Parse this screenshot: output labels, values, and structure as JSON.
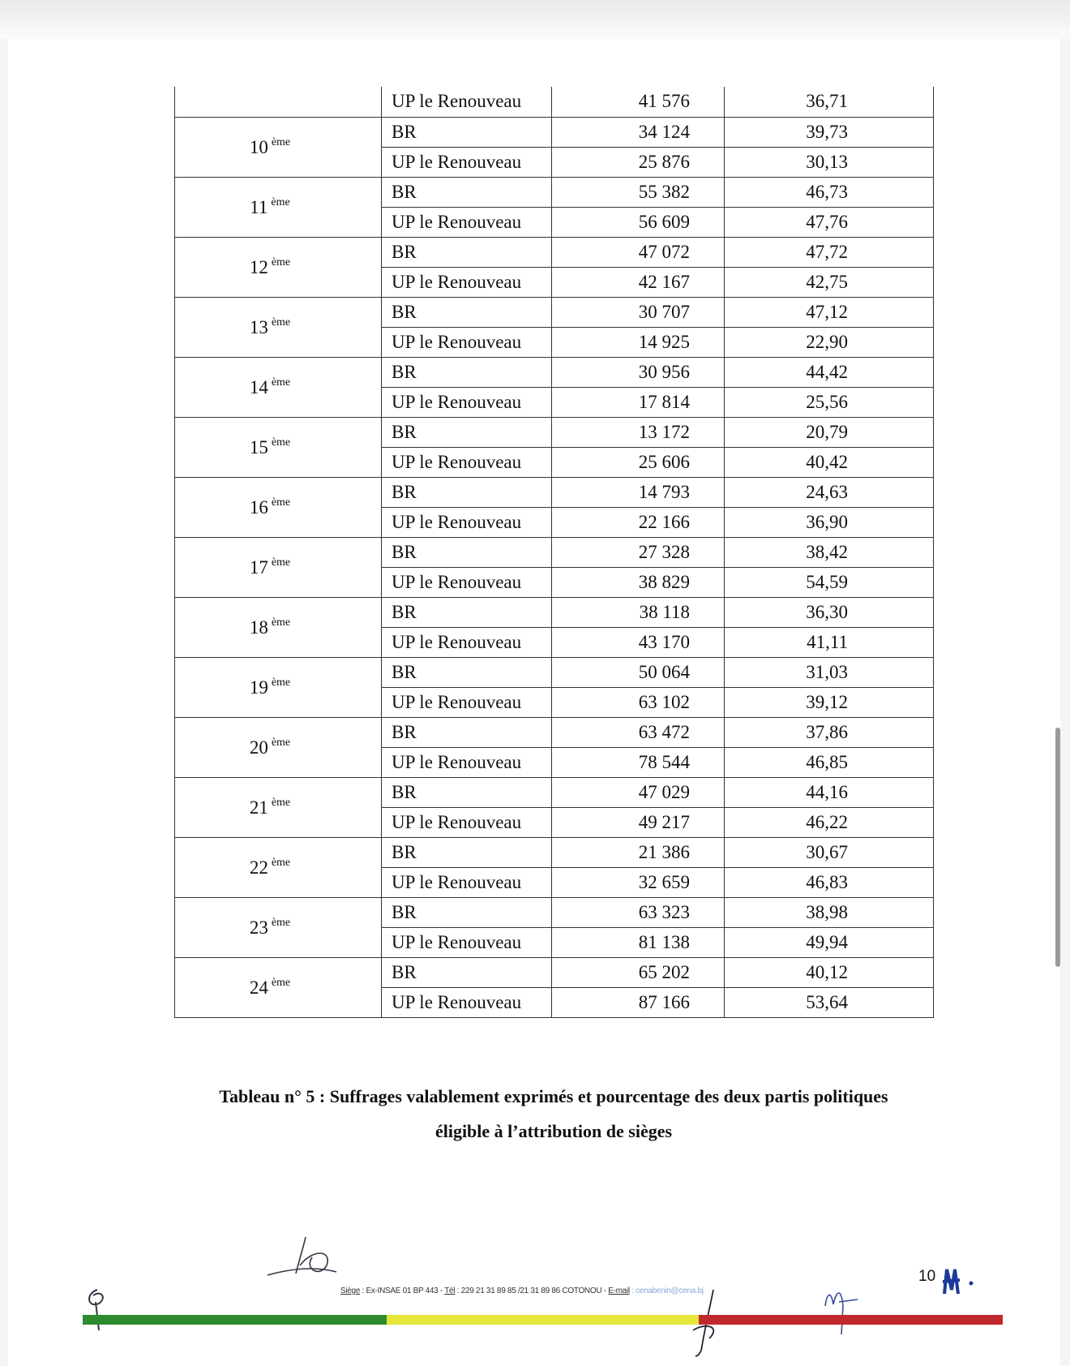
{
  "table": {
    "top_continuation": {
      "party": "UP le Renouveau",
      "votes": "41 576",
      "pct": "36,71"
    },
    "districts": [
      {
        "num": "10",
        "suffix": "ème",
        "rows": [
          {
            "party": "BR",
            "votes": "34 124",
            "pct": "39,73"
          },
          {
            "party": "UP le Renouveau",
            "votes": "25 876",
            "pct": "30,13"
          }
        ]
      },
      {
        "num": "11",
        "suffix": "ème",
        "rows": [
          {
            "party": "BR",
            "votes": "55 382",
            "pct": "46,73"
          },
          {
            "party": "UP le Renouveau",
            "votes": "56 609",
            "pct": "47,76"
          }
        ]
      },
      {
        "num": "12",
        "suffix": "ème",
        "rows": [
          {
            "party": "BR",
            "votes": "47 072",
            "pct": "47,72"
          },
          {
            "party": "UP le Renouveau",
            "votes": "42 167",
            "pct": "42,75"
          }
        ]
      },
      {
        "num": "13",
        "suffix": "ème",
        "rows": [
          {
            "party": "BR",
            "votes": "30 707",
            "pct": "47,12"
          },
          {
            "party": "UP le Renouveau",
            "votes": "14 925",
            "pct": "22,90"
          }
        ]
      },
      {
        "num": "14",
        "suffix": "ème",
        "rows": [
          {
            "party": "BR",
            "votes": "30 956",
            "pct": "44,42"
          },
          {
            "party": "UP le Renouveau",
            "votes": "17 814",
            "pct": "25,56"
          }
        ]
      },
      {
        "num": "15",
        "suffix": "ème",
        "rows": [
          {
            "party": "BR",
            "votes": "13 172",
            "pct": "20,79"
          },
          {
            "party": "UP le Renouveau",
            "votes": "25 606",
            "pct": "40,42"
          }
        ]
      },
      {
        "num": "16",
        "suffix": "ème",
        "rows": [
          {
            "party": "BR",
            "votes": "14 793",
            "pct": "24,63"
          },
          {
            "party": "UP le Renouveau",
            "votes": "22 166",
            "pct": "36,90"
          }
        ]
      },
      {
        "num": "17",
        "suffix": "ème",
        "rows": [
          {
            "party": "BR",
            "votes": "27 328",
            "pct": "38,42"
          },
          {
            "party": "UP le Renouveau",
            "votes": "38 829",
            "pct": "54,59"
          }
        ]
      },
      {
        "num": "18",
        "suffix": "ème",
        "rows": [
          {
            "party": "BR",
            "votes": "38 118",
            "pct": "36,30"
          },
          {
            "party": "UP le Renouveau",
            "votes": "43 170",
            "pct": "41,11"
          }
        ]
      },
      {
        "num": "19",
        "suffix": "ème",
        "rows": [
          {
            "party": "BR",
            "votes": "50 064",
            "pct": "31,03"
          },
          {
            "party": "UP le Renouveau",
            "votes": "63 102",
            "pct": "39,12"
          }
        ]
      },
      {
        "num": "20",
        "suffix": "ème",
        "rows": [
          {
            "party": "BR",
            "votes": "63 472",
            "pct": "37,86"
          },
          {
            "party": "UP le Renouveau",
            "votes": "78 544",
            "pct": "46,85"
          }
        ]
      },
      {
        "num": "21",
        "suffix": "ème",
        "rows": [
          {
            "party": "BR",
            "votes": "47 029",
            "pct": "44,16"
          },
          {
            "party": "UP le Renouveau",
            "votes": "49 217",
            "pct": "46,22"
          }
        ]
      },
      {
        "num": "22",
        "suffix": "ème",
        "rows": [
          {
            "party": "BR",
            "votes": "21 386",
            "pct": "30,67"
          },
          {
            "party": "UP le Renouveau",
            "votes": "32 659",
            "pct": "46,83"
          }
        ]
      },
      {
        "num": "23",
        "suffix": "ème",
        "rows": [
          {
            "party": "BR",
            "votes": "63 323",
            "pct": "38,98"
          },
          {
            "party": "UP le Renouveau",
            "votes": "81 138",
            "pct": "49,94"
          }
        ]
      },
      {
        "num": "24",
        "suffix": "ème",
        "rows": [
          {
            "party": "BR",
            "votes": "65 202",
            "pct": "40,12"
          },
          {
            "party": "UP le Renouveau",
            "votes": "87 166",
            "pct": "53,64"
          }
        ]
      }
    ]
  },
  "caption": {
    "line1": "Tableau n° 5 : Suffrages valablement exprimés et pourcentage des deux partis politiques",
    "line2": "éligible à l’attribution de sièges"
  },
  "footer": {
    "siege_label": "Siège",
    "siege_value": " : Ex-INSAE 01 BP 443 - ",
    "tel_label": "Tél",
    "tel_value": " : 229 21 31 89 85 /21 31 89 86 COTONOU - ",
    "email_label": "E-mail",
    "email_value": " : cenabenin@cena.bj",
    "page_number": "10"
  },
  "colors": {
    "green": "#2e8b2e",
    "yellow": "#e6e63a",
    "red": "#c0282e"
  }
}
